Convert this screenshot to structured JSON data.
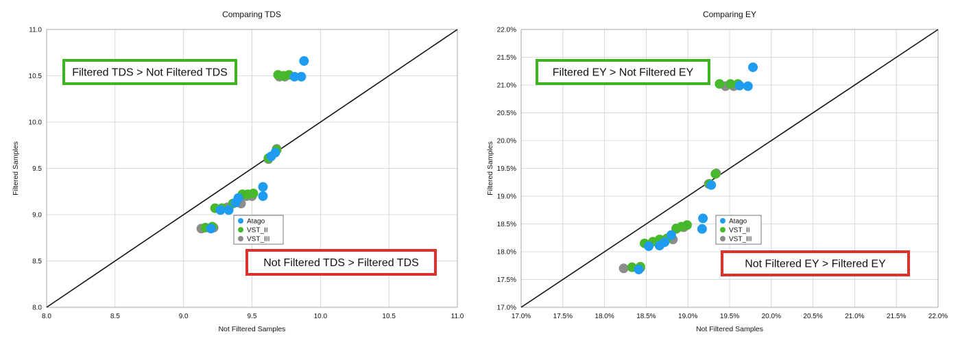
{
  "chart_data": [
    {
      "type": "scatter",
      "title": "Comparing TDS",
      "xlabel": "Not Filtered Samples",
      "ylabel": "Filtered Samples",
      "xlim": [
        8.0,
        11.0
      ],
      "ylim": [
        8.0,
        11.0
      ],
      "xticks": [
        "8.0",
        "8.5",
        "9.0",
        "9.5",
        "10.0",
        "10.5",
        "11.0"
      ],
      "yticks": [
        "8.0",
        "8.5",
        "9.0",
        "9.5",
        "10.0",
        "10.5",
        "11.0"
      ],
      "grid": true,
      "legend_position": "inside-lower-right",
      "reference_line": "y = x",
      "series": [
        {
          "name": "Atago",
          "color": "#1f9cf0",
          "points": [
            [
              9.88,
              10.66
            ],
            [
              9.86,
              10.49
            ],
            [
              9.81,
              10.49
            ],
            [
              9.64,
              9.63
            ],
            [
              9.67,
              9.67
            ],
            [
              9.58,
              9.3
            ],
            [
              9.58,
              9.2
            ],
            [
              9.4,
              9.18
            ],
            [
              9.38,
              9.13
            ],
            [
              9.33,
              9.05
            ],
            [
              9.27,
              9.05
            ],
            [
              9.2,
              8.85
            ]
          ]
        },
        {
          "name": "VST_II",
          "color": "#47b82c",
          "points": [
            [
              9.69,
              10.51
            ],
            [
              9.73,
              10.5
            ],
            [
              9.77,
              10.51
            ],
            [
              9.68,
              9.7
            ],
            [
              9.62,
              9.61
            ],
            [
              9.51,
              9.23
            ],
            [
              9.47,
              9.22
            ],
            [
              9.43,
              9.22
            ],
            [
              9.36,
              9.12
            ],
            [
              9.28,
              9.07
            ],
            [
              9.23,
              9.07
            ],
            [
              9.21,
              8.87
            ],
            [
              9.16,
              8.86
            ]
          ]
        },
        {
          "name": "VST_III",
          "color": "#8c8c8c",
          "points": [
            [
              9.7,
              10.49
            ],
            [
              9.74,
              10.49
            ],
            [
              9.68,
              9.71
            ],
            [
              9.62,
              9.6
            ],
            [
              9.5,
              9.2
            ],
            [
              9.46,
              9.2
            ],
            [
              9.42,
              9.12
            ],
            [
              9.32,
              9.08
            ],
            [
              9.22,
              8.86
            ],
            [
              9.13,
              8.85
            ]
          ]
        }
      ],
      "annotations": [
        {
          "text": "Filtered TDS > Not Filtered TDS",
          "color": "#3cb521"
        },
        {
          "text": "Not Filtered TDS > Filtered TDS",
          "color": "#e0302a"
        }
      ]
    },
    {
      "type": "scatter",
      "title": "Comparing EY",
      "xlabel": "Not Filtered Samples",
      "ylabel": "Filtered Samples",
      "xlim": [
        17.0,
        22.0
      ],
      "ylim": [
        17.0,
        22.0
      ],
      "xticks": [
        "17.0%",
        "17.5%",
        "18.0%",
        "18.5%",
        "19.0%",
        "19.5%",
        "20.0%",
        "20.5%",
        "21.0%",
        "21.5%",
        "22.0%"
      ],
      "yticks": [
        "17.0%",
        "17.5%",
        "18.0%",
        "18.5%",
        "19.0%",
        "19.5%",
        "20.0%",
        "20.5%",
        "21.0%",
        "21.5%",
        "22.0%"
      ],
      "grid": true,
      "legend_position": "inside-lower-right",
      "reference_line": "y = x",
      "series": [
        {
          "name": "Atago",
          "color": "#1f9cf0",
          "points": [
            [
              19.78,
              21.32
            ],
            [
              19.72,
              20.98
            ],
            [
              19.62,
              20.99
            ],
            [
              19.18,
              18.6
            ],
            [
              19.17,
              18.41
            ],
            [
              19.28,
              19.2
            ],
            [
              18.8,
              18.3
            ],
            [
              18.72,
              18.17
            ],
            [
              18.66,
              18.11
            ],
            [
              18.53,
              18.1
            ],
            [
              18.41,
              17.68
            ]
          ]
        },
        {
          "name": "VST_II",
          "color": "#47b82c",
          "points": [
            [
              19.38,
              21.02
            ],
            [
              19.51,
              21.02
            ],
            [
              19.6,
              21.02
            ],
            [
              19.33,
              19.4
            ],
            [
              19.26,
              19.22
            ],
            [
              18.99,
              18.48
            ],
            [
              18.92,
              18.45
            ],
            [
              18.86,
              18.42
            ],
            [
              18.75,
              18.24
            ],
            [
              18.66,
              18.22
            ],
            [
              18.58,
              18.18
            ],
            [
              18.48,
              18.15
            ],
            [
              18.43,
              17.73
            ],
            [
              18.33,
              17.72
            ]
          ]
        },
        {
          "name": "VST_III",
          "color": "#8c8c8c",
          "points": [
            [
              19.45,
              20.98
            ],
            [
              19.55,
              20.98
            ],
            [
              19.34,
              19.41
            ],
            [
              19.25,
              19.22
            ],
            [
              18.95,
              18.44
            ],
            [
              18.86,
              18.41
            ],
            [
              18.82,
              18.22
            ],
            [
              18.7,
              18.2
            ],
            [
              18.43,
              17.71
            ],
            [
              18.23,
              17.7
            ]
          ]
        }
      ],
      "annotations": [
        {
          "text": "Filtered EY > Not Filtered EY",
          "color": "#3cb521"
        },
        {
          "text": "Not Filtered EY > Filtered EY",
          "color": "#e0302a"
        }
      ]
    }
  ]
}
